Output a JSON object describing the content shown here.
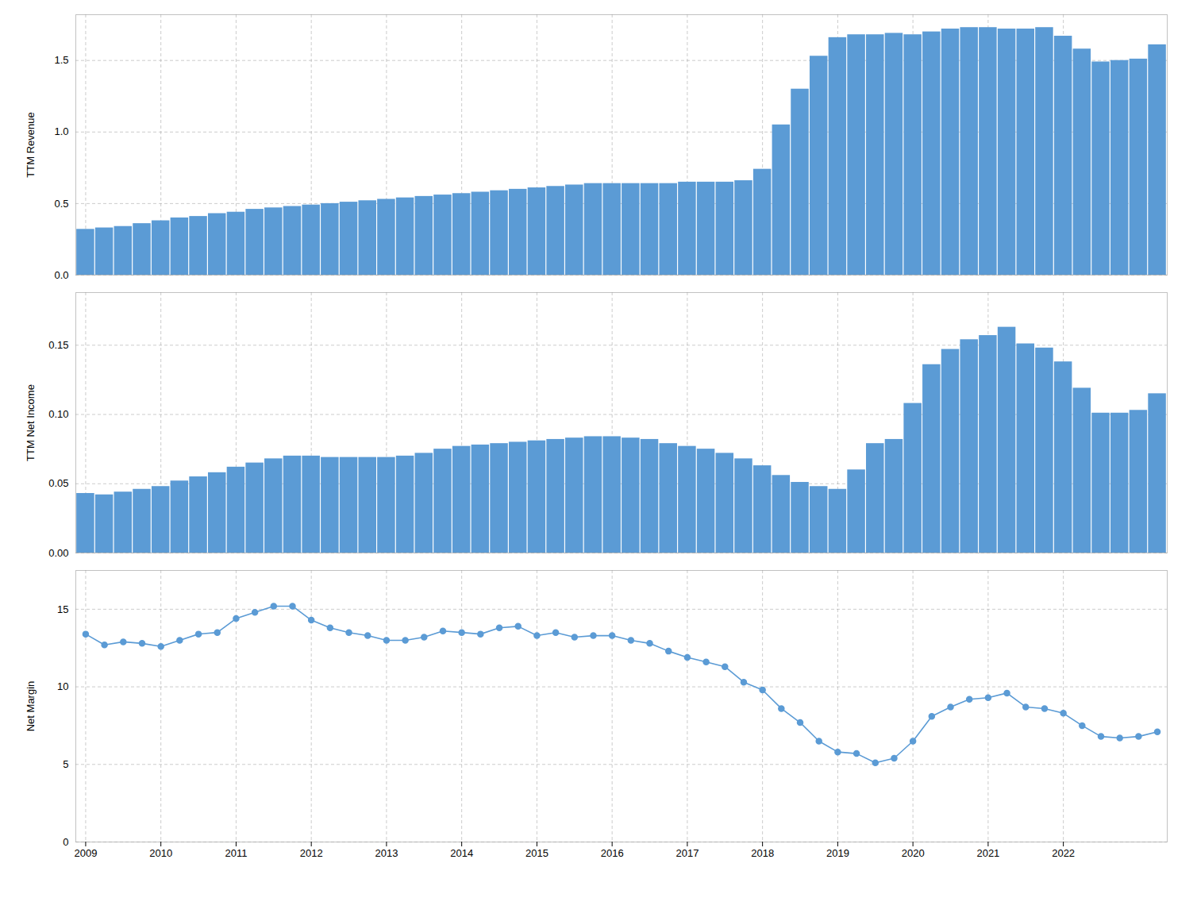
{
  "chart_data": [
    {
      "type": "bar",
      "ylabel": "TTM Revenue",
      "color": "#5B9BD5",
      "grid": true,
      "tick_labels": "y",
      "categories": [
        "2009",
        null,
        null,
        null,
        "2010",
        null,
        null,
        null,
        "2011",
        null,
        null,
        null,
        "2012",
        null,
        null,
        null,
        "2013",
        null,
        null,
        null,
        "2014",
        null,
        null,
        null,
        "2015",
        null,
        null,
        null,
        "2016",
        null,
        null,
        null,
        "2017",
        null,
        null,
        null,
        "2018",
        null,
        null,
        null,
        "2019",
        null,
        null,
        null,
        "2020",
        null,
        null,
        null,
        "2021",
        null,
        null,
        null,
        "2022",
        null,
        null,
        null,
        null,
        null
      ],
      "values": [
        0.32,
        0.33,
        0.34,
        0.36,
        0.38,
        0.4,
        0.41,
        0.43,
        0.44,
        0.46,
        0.47,
        0.48,
        0.49,
        0.5,
        0.51,
        0.52,
        0.53,
        0.54,
        0.55,
        0.56,
        0.57,
        0.58,
        0.59,
        0.6,
        0.61,
        0.62,
        0.63,
        0.64,
        0.64,
        0.64,
        0.64,
        0.64,
        0.65,
        0.65,
        0.65,
        0.66,
        0.74,
        1.05,
        1.3,
        1.53,
        1.66,
        1.68,
        1.68,
        1.69,
        1.68,
        1.7,
        1.72,
        1.73,
        1.73,
        1.72,
        1.72,
        1.73,
        1.67,
        1.58,
        1.49,
        1.5,
        1.51,
        1.61
      ],
      "ylim": [
        0,
        1.82
      ],
      "yticks": [
        {
          "value": 0.0,
          "label": "0.0"
        },
        0.5,
        {
          "value": 1.0,
          "label": "1.0"
        },
        1.5
      ]
    },
    {
      "type": "bar",
      "ylabel": "TTM Net Income",
      "color": "#5B9BD5",
      "grid": true,
      "tick_labels": "y",
      "categories": [
        "2009",
        null,
        null,
        null,
        "2010",
        null,
        null,
        null,
        "2011",
        null,
        null,
        null,
        "2012",
        null,
        null,
        null,
        "2013",
        null,
        null,
        null,
        "2014",
        null,
        null,
        null,
        "2015",
        null,
        null,
        null,
        "2016",
        null,
        null,
        null,
        "2017",
        null,
        null,
        null,
        "2018",
        null,
        null,
        null,
        "2019",
        null,
        null,
        null,
        "2020",
        null,
        null,
        null,
        "2021",
        null,
        null,
        null,
        "2022",
        null,
        null,
        null,
        null,
        null
      ],
      "values": [
        0.043,
        0.042,
        0.044,
        0.046,
        0.048,
        0.052,
        0.055,
        0.058,
        0.062,
        0.065,
        0.068,
        0.07,
        0.07,
        0.069,
        0.069,
        0.069,
        0.069,
        0.07,
        0.072,
        0.075,
        0.077,
        0.078,
        0.079,
        0.08,
        0.081,
        0.082,
        0.083,
        0.084,
        0.084,
        0.083,
        0.082,
        0.079,
        0.077,
        0.075,
        0.072,
        0.068,
        0.063,
        0.056,
        0.051,
        0.048,
        0.046,
        0.06,
        0.079,
        0.082,
        0.108,
        0.136,
        0.147,
        0.154,
        0.157,
        0.163,
        0.151,
        0.148,
        0.138,
        0.119,
        0.101,
        0.101,
        0.103,
        0.115
      ],
      "ylim": [
        0,
        0.188
      ],
      "yticks": [
        {
          "value": 0.0,
          "label": "0.00"
        },
        0.05,
        {
          "value": 0.1,
          "label": "0.10"
        },
        0.15
      ]
    },
    {
      "type": "line",
      "ylabel": "Net Margin",
      "color": "#5B9BD5",
      "marker": "circle",
      "grid": true,
      "categories": [
        "2009",
        null,
        null,
        null,
        "2010",
        null,
        null,
        null,
        "2011",
        null,
        null,
        null,
        "2012",
        null,
        null,
        null,
        "2013",
        null,
        null,
        null,
        "2014",
        null,
        null,
        null,
        "2015",
        null,
        null,
        null,
        "2016",
        null,
        null,
        null,
        "2017",
        null,
        null,
        null,
        "2018",
        null,
        null,
        null,
        "2019",
        null,
        null,
        null,
        "2020",
        null,
        null,
        null,
        "2021",
        null,
        null,
        null,
        "2022",
        null,
        null,
        null,
        null,
        null
      ],
      "values": [
        13.4,
        12.7,
        12.9,
        12.8,
        12.6,
        13.0,
        13.4,
        13.5,
        14.4,
        14.8,
        15.2,
        15.2,
        14.3,
        13.8,
        13.5,
        13.3,
        13.0,
        13.0,
        13.2,
        13.6,
        13.5,
        13.4,
        13.8,
        13.9,
        13.3,
        13.5,
        13.2,
        13.3,
        13.3,
        13.0,
        12.8,
        12.3,
        11.9,
        11.6,
        11.3,
        10.3,
        9.8,
        8.6,
        7.7,
        6.5,
        5.8,
        5.7,
        5.1,
        5.4,
        6.5,
        8.1,
        8.7,
        9.2,
        9.3,
        9.6,
        8.7,
        8.6,
        8.3,
        7.5,
        6.8,
        6.7,
        6.8,
        7.1
      ],
      "ylim": [
        0,
        17.5
      ],
      "yticks": [
        0,
        5,
        10,
        15
      ]
    }
  ]
}
